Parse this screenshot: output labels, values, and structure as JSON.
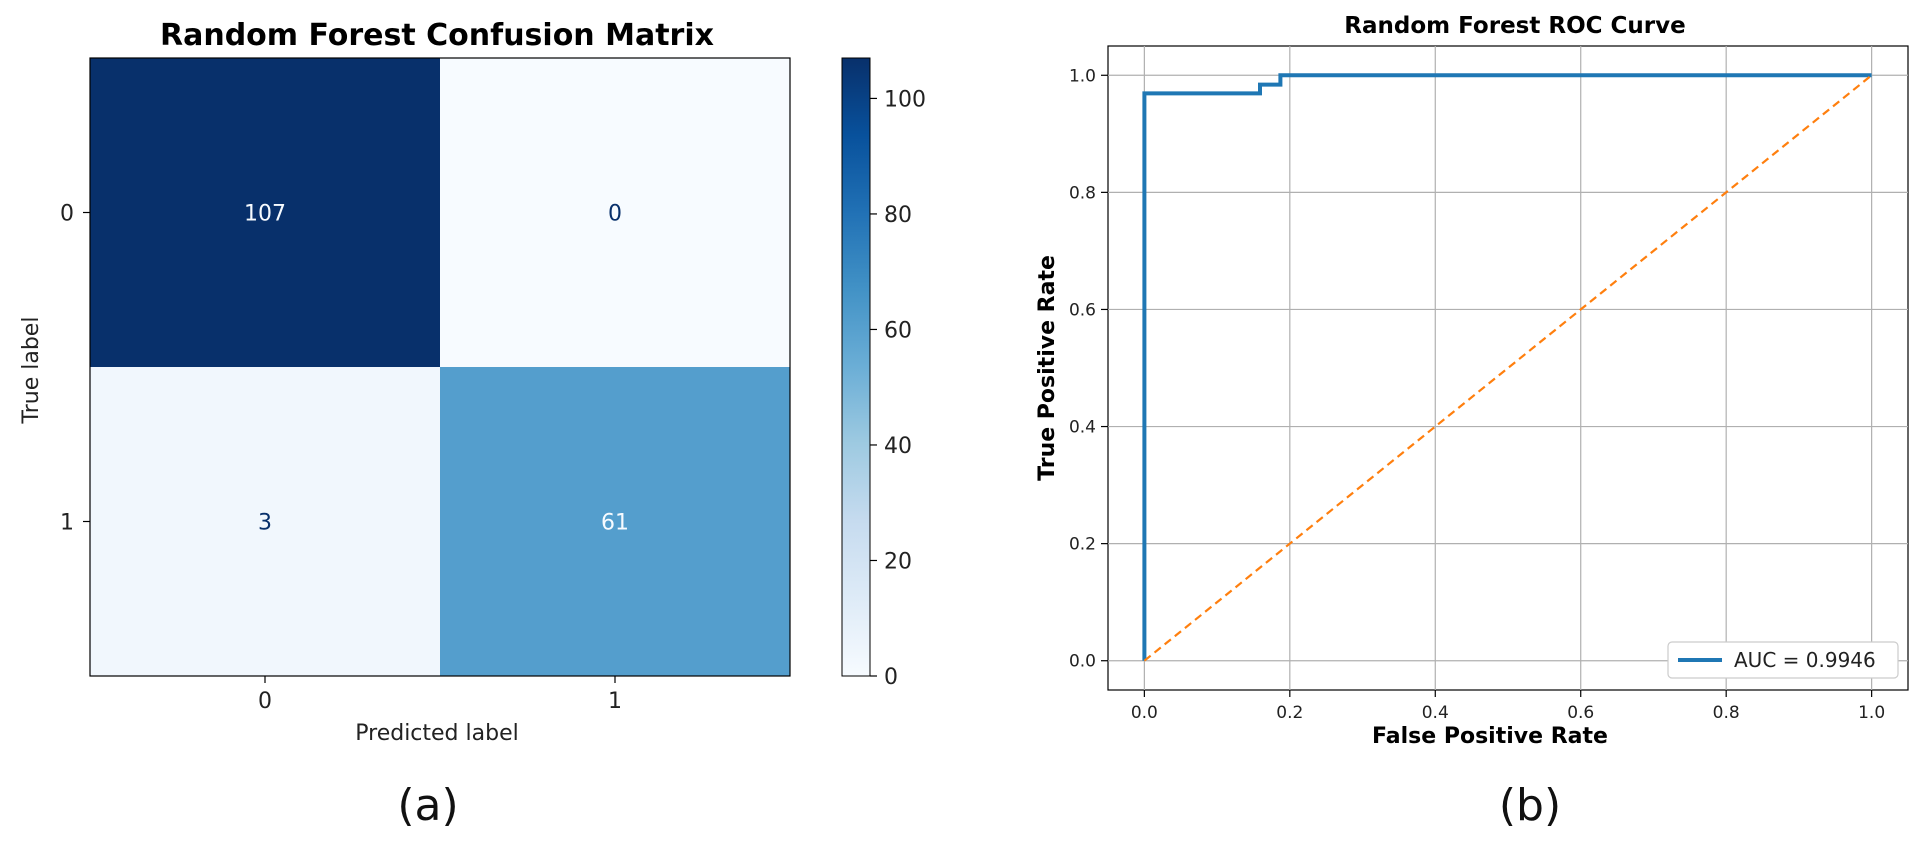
{
  "panels": {
    "a": {
      "caption": "(a)"
    },
    "b": {
      "caption": "(b)"
    }
  },
  "chart_data": [
    {
      "type": "heatmap",
      "title": "Random Forest Confusion Matrix",
      "xlabel": "Predicted label",
      "ylabel": "True label",
      "x_ticks": [
        "0",
        "1"
      ],
      "y_ticks": [
        "0",
        "1"
      ],
      "matrix": [
        [
          107,
          0
        ],
        [
          3,
          61
        ]
      ],
      "colormap": "Blues",
      "colorbar": {
        "ticks": [
          0,
          20,
          40,
          60,
          80,
          100
        ],
        "range": [
          0,
          107
        ]
      },
      "colors": {
        "high": "#08306b",
        "low": "#f7fbff"
      }
    },
    {
      "type": "line",
      "title": "Random Forest ROC Curve",
      "xlabel": "False Positive Rate",
      "ylabel": "True Positive Rate",
      "xlim": [
        -0.05,
        1.05
      ],
      "ylim": [
        -0.05,
        1.05
      ],
      "x_ticks": [
        0.0,
        0.2,
        0.4,
        0.6,
        0.8,
        1.0
      ],
      "y_ticks": [
        0.0,
        0.2,
        0.4,
        0.6,
        0.8,
        1.0
      ],
      "grid": true,
      "legend": {
        "placement": "lower-right"
      },
      "series": [
        {
          "name": "AUC = 0.9946",
          "color": "#1f77b4",
          "style": "solid",
          "x": [
            0.0,
            0.0,
            0.159,
            0.159,
            0.187,
            0.187,
            1.0
          ],
          "y": [
            0.0,
            0.969,
            0.969,
            0.984,
            0.984,
            1.0,
            1.0
          ]
        },
        {
          "color": "#ff7f0e",
          "style": "dashed",
          "x": [
            0.0,
            1.0
          ],
          "y": [
            0.0,
            1.0
          ]
        }
      ]
    }
  ]
}
